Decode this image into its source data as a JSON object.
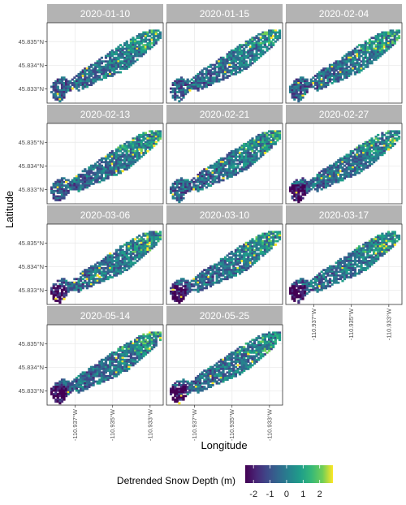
{
  "chart_data": {
    "type": "heatmap",
    "description_free": true,
    "xlabel": "Longitude",
    "ylabel": "Latitude",
    "x_ticks": [
      "-110.937°W",
      "-110.935°W",
      "-110.933°W"
    ],
    "x_tick_values": [
      -110.937,
      -110.935,
      -110.933
    ],
    "y_ticks": [
      "45.835°N",
      "45.834°N",
      "45.833°N"
    ],
    "y_tick_values": [
      45.835,
      45.834,
      45.833
    ],
    "xlim": [
      -110.9385,
      -110.9323
    ],
    "ylim": [
      45.8324,
      45.8358
    ],
    "grid": true,
    "legend": {
      "title": "Detrended Snow Depth (m)",
      "position": "bottom",
      "ticks": [
        "-2",
        "-1",
        "0",
        "1",
        "2"
      ],
      "tick_values": [
        -2,
        -1,
        0,
        1,
        2
      ],
      "range": [
        -2.5,
        2.8
      ]
    },
    "colormap": [
      "#440154",
      "#3b528b",
      "#21908c",
      "#5dc863",
      "#fde725"
    ],
    "panels": [
      {
        "date": "2020-01-10"
      },
      {
        "date": "2020-01-15"
      },
      {
        "date": "2020-02-04"
      },
      {
        "date": "2020-02-13"
      },
      {
        "date": "2020-02-21"
      },
      {
        "date": "2020-02-27"
      },
      {
        "date": "2020-03-06"
      },
      {
        "date": "2020-03-10"
      },
      {
        "date": "2020-03-17"
      },
      {
        "date": "2020-05-14"
      },
      {
        "date": "2020-05-25"
      }
    ]
  },
  "colors": {
    "strip_bg": "#b3b3b3",
    "panel_border": "#333333",
    "grid": "#ebebeb"
  }
}
